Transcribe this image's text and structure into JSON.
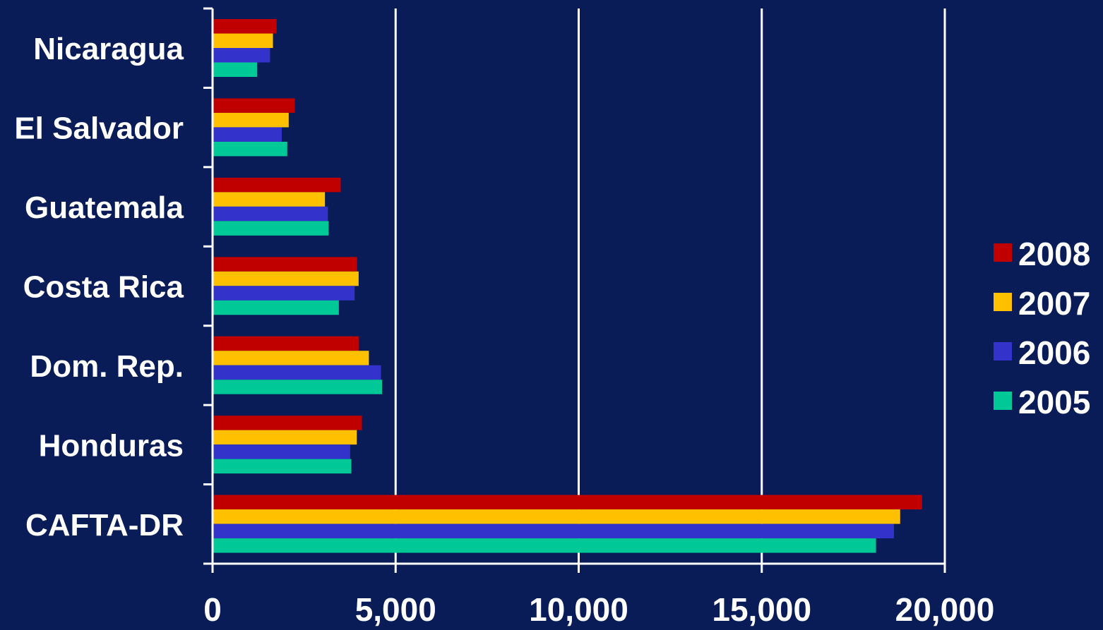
{
  "chart_data": {
    "type": "bar",
    "orientation": "horizontal",
    "title": "",
    "xlabel": "",
    "ylabel": "",
    "categories": [
      "Nicaragua",
      "El Salvador",
      "Guatemala",
      "Costa Rica",
      "Dom. Rep.",
      "Honduras",
      "CAFTA-DR"
    ],
    "series": [
      {
        "name": "2008",
        "color": "#c00000",
        "values": [
          1750,
          2250,
          3500,
          3950,
          4000,
          4080,
          19380
        ]
      },
      {
        "name": "2007",
        "color": "#ffc000",
        "values": [
          1650,
          2080,
          3070,
          3990,
          4270,
          3940,
          18780
        ]
      },
      {
        "name": "2006",
        "color": "#3333cc",
        "values": [
          1570,
          1890,
          3150,
          3880,
          4600,
          3760,
          18610
        ]
      },
      {
        "name": "2005",
        "color": "#00c896",
        "values": [
          1220,
          2040,
          3170,
          3450,
          4630,
          3790,
          18120
        ]
      }
    ],
    "xlim": [
      0,
      20000
    ],
    "xticks": [
      0,
      5000,
      10000,
      15000,
      20000
    ],
    "xtick_labels": [
      "0",
      "5,000",
      "10,000",
      "15,000",
      "20,000"
    ],
    "grid": true,
    "legend_position": "right",
    "legend_order": [
      "2008",
      "2007",
      "2006",
      "2005"
    ],
    "background_color": "#0a1c57",
    "axis_color": "#ffffff"
  }
}
